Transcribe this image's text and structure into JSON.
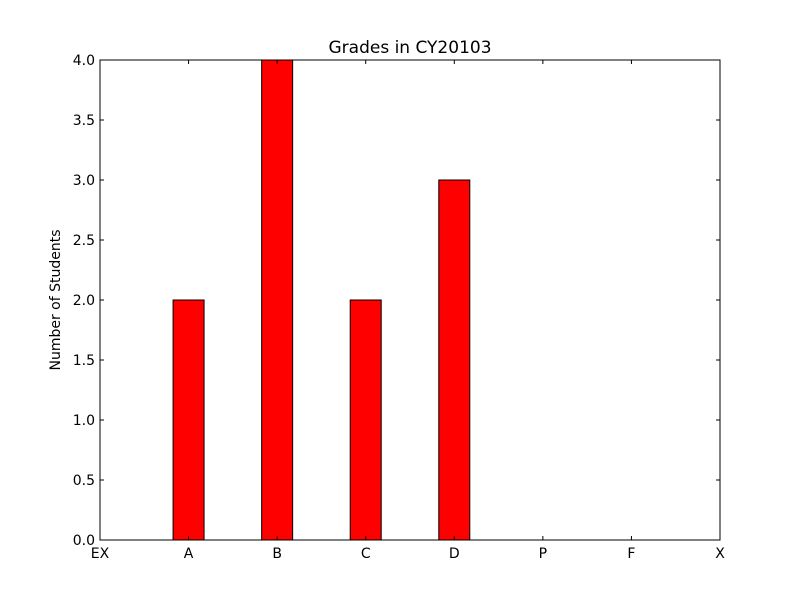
{
  "chart_data": {
    "type": "bar",
    "title": "Grades in CY20103",
    "xlabel": "",
    "ylabel": "Number of Students",
    "categories": [
      "EX",
      "A",
      "B",
      "C",
      "D",
      "P",
      "F",
      "X"
    ],
    "values": [
      0,
      2,
      4,
      2,
      3,
      0,
      0,
      0
    ],
    "ylim": [
      0,
      4.0
    ],
    "yticks": [
      "0.0",
      "0.5",
      "1.0",
      "1.5",
      "2.0",
      "2.5",
      "3.0",
      "3.5",
      "4.0"
    ],
    "grid": false,
    "legend": "none",
    "bar_color": "#ff0000",
    "edge_color": "#000000"
  }
}
